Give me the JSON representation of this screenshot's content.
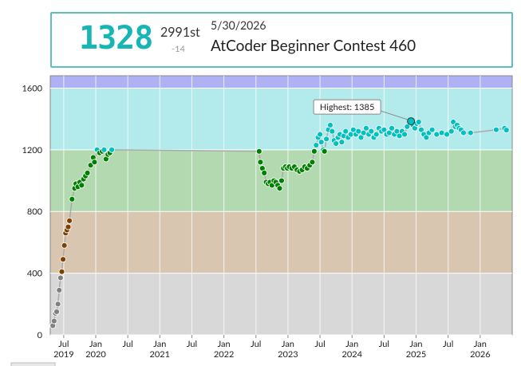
{
  "header": {
    "rating": "1328",
    "rank": "2991st",
    "diff": "-14",
    "date": "5/30/2026",
    "contest": "AtCoder Beginner Contest 460"
  },
  "chart_data": {
    "type": "line",
    "xlim": [
      2019.29,
      2026.5
    ],
    "ylim": [
      0,
      1680
    ],
    "yticks": [
      0,
      400,
      800,
      1200,
      1600
    ],
    "xticks": [
      {
        "value": 2019.5,
        "label": "Jul",
        "year": "2019"
      },
      {
        "value": 2020,
        "label": "Jan",
        "year": "2020"
      },
      {
        "value": 2020.5,
        "label": "Jul"
      },
      {
        "value": 2021,
        "label": "Jan",
        "year": "2021"
      },
      {
        "value": 2021.5,
        "label": "Jul"
      },
      {
        "value": 2022,
        "label": "Jan",
        "year": "2022"
      },
      {
        "value": 2022.5,
        "label": "Jul"
      },
      {
        "value": 2023,
        "label": "Jan",
        "year": "2023"
      },
      {
        "value": 2023.5,
        "label": "Jul"
      },
      {
        "value": 2024,
        "label": "Jan",
        "year": "2024"
      },
      {
        "value": 2024.5,
        "label": "Jul"
      },
      {
        "value": 2025,
        "label": "Jan",
        "year": "2025"
      },
      {
        "value": 2025.5,
        "label": "Jul"
      },
      {
        "value": 2026,
        "label": "Jan",
        "year": "2026"
      }
    ],
    "grid": true,
    "bands": [
      {
        "from": 0,
        "to": 400,
        "color": "#d8d8d8",
        "point": "#808080"
      },
      {
        "from": 400,
        "to": 800,
        "color": "#d9c6b1",
        "point": "#804000"
      },
      {
        "from": 800,
        "to": 1200,
        "color": "#b3d9b0",
        "point": "#008000"
      },
      {
        "from": 1200,
        "to": 1600,
        "color": "#b3eaeb",
        "point": "#00c0c0"
      },
      {
        "from": 1600,
        "to": 1680,
        "color": "#b0b0f5",
        "point": "#0000ff"
      }
    ],
    "line_color": "#aaaaaa",
    "x": [
      2019.33,
      2019.35,
      2019.37,
      2019.39,
      2019.41,
      2019.43,
      2019.45,
      2019.47,
      2019.49,
      2019.51,
      2019.53,
      2019.55,
      2019.57,
      2019.59,
      2019.63,
      2019.67,
      2019.69,
      2019.72,
      2019.75,
      2019.78,
      2019.81,
      2019.84,
      2019.87,
      2019.92,
      2019.96,
      2019.98,
      2020.02,
      2020.06,
      2020.1,
      2020.13,
      2020.16,
      2020.19,
      2020.22,
      2020.25,
      2022.55,
      2022.57,
      2022.6,
      2022.63,
      2022.66,
      2022.69,
      2022.72,
      2022.75,
      2022.78,
      2022.81,
      2022.84,
      2022.87,
      2022.9,
      2022.93,
      2022.96,
      2022.99,
      2023.02,
      2023.06,
      2023.1,
      2023.14,
      2023.18,
      2023.22,
      2023.26,
      2023.3,
      2023.34,
      2023.38,
      2023.41,
      2023.44,
      2023.47,
      2023.5,
      2023.52,
      2023.55,
      2023.57,
      2023.6,
      2023.63,
      2023.66,
      2023.69,
      2023.72,
      2023.75,
      2023.78,
      2023.81,
      2023.84,
      2023.87,
      2023.9,
      2023.94,
      2023.98,
      2024.02,
      2024.06,
      2024.1,
      2024.14,
      2024.18,
      2024.22,
      2024.26,
      2024.3,
      2024.34,
      2024.38,
      2024.42,
      2024.46,
      2024.5,
      2024.54,
      2024.58,
      2024.62,
      2024.66,
      2024.7,
      2024.74,
      2024.78,
      2024.82,
      2024.86,
      2024.92,
      2024.95,
      2024.98,
      2025.01,
      2025.04,
      2025.08,
      2025.12,
      2025.16,
      2025.2,
      2025.25,
      2025.32,
      2025.4,
      2025.48,
      2025.55,
      2025.58,
      2025.61,
      2025.64,
      2025.67,
      2025.7,
      2025.74,
      2025.85,
      2026.25,
      2026.38,
      2026.41
    ],
    "values": [
      60,
      90,
      140,
      150,
      200,
      290,
      370,
      410,
      490,
      580,
      660,
      680,
      700,
      740,
      880,
      950,
      980,
      960,
      990,
      970,
      1010,
      1030,
      1050,
      1100,
      1150,
      1120,
      1200,
      1180,
      1190,
      1200,
      1140,
      1170,
      1180,
      1200,
      1190,
      1120,
      1080,
      1050,
      990,
      980,
      990,
      970,
      1000,
      990,
      970,
      950,
      1000,
      1080,
      1090,
      1080,
      1090,
      1080,
      1090,
      1070,
      1060,
      1070,
      1090,
      1080,
      1100,
      1120,
      1190,
      1230,
      1280,
      1300,
      1250,
      1200,
      1190,
      1270,
      1330,
      1360,
      1320,
      1260,
      1240,
      1280,
      1300,
      1250,
      1290,
      1320,
      1280,
      1300,
      1330,
      1300,
      1320,
      1280,
      1310,
      1340,
      1300,
      1320,
      1280,
      1300,
      1340,
      1320,
      1330,
      1300,
      1310,
      1340,
      1300,
      1320,
      1290,
      1320,
      1300,
      1350,
      1385,
      1360,
      1340,
      1370,
      1380,
      1330,
      1300,
      1280,
      1310,
      1330,
      1300,
      1310,
      1300,
      1320,
      1380,
      1350,
      1360,
      1340,
      1330,
      1310,
      1310,
      1330,
      1340,
      1328
    ],
    "annotation": {
      "label": "Highest: 1385",
      "x": 2024.92,
      "y": 1385
    }
  }
}
